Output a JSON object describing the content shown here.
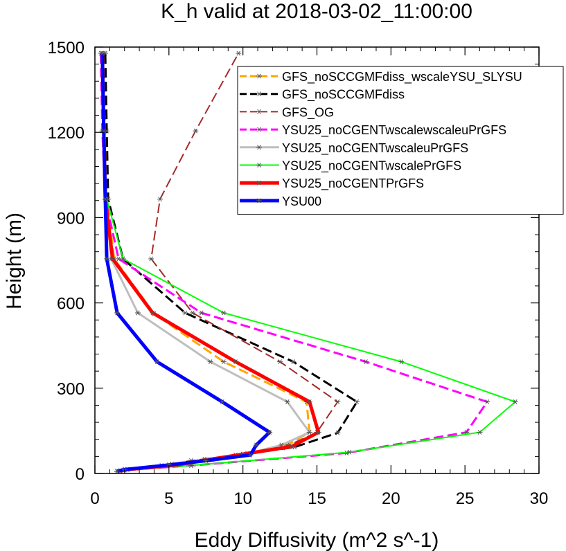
{
  "chart_data": {
    "type": "line",
    "title": "K_h valid at 2018-03-02_11:00:00",
    "xlabel": "Eddy Diffusivity (m^2 s^-1)",
    "ylabel": "Height (m)",
    "xlim": [
      0,
      30
    ],
    "ylim": [
      0,
      1500
    ],
    "xticks": [
      0,
      5,
      10,
      15,
      20,
      25,
      30
    ],
    "yticks": [
      0,
      300,
      600,
      900,
      1200,
      1500
    ],
    "grid": false,
    "legend_position": "top-right",
    "series": [
      {
        "name": "GFS_noSCCGMFdiss_wscaleYSU_SLYSU",
        "color": "#ffa500",
        "dash": "dash-long",
        "width": 3,
        "points": [
          [
            1.7,
            10
          ],
          [
            2.0,
            15
          ],
          [
            5.2,
            33
          ],
          [
            7.4,
            50
          ],
          [
            10.3,
            70
          ],
          [
            13.0,
            100
          ],
          [
            14.5,
            145
          ],
          [
            14.3,
            252
          ],
          [
            8.7,
            393
          ],
          [
            4.0,
            562
          ],
          [
            1.3,
            755
          ],
          [
            0.8,
            965
          ],
          [
            0.7,
            1205
          ],
          [
            0.6,
            1478
          ]
        ]
      },
      {
        "name": "GFS_noSCCGMFdiss",
        "color": "#000000",
        "dash": "dash-long",
        "width": 3,
        "points": [
          [
            1.5,
            8
          ],
          [
            2.0,
            14
          ],
          [
            5.0,
            30
          ],
          [
            7.5,
            47
          ],
          [
            10.0,
            67
          ],
          [
            13.5,
            93
          ],
          [
            16.4,
            143
          ],
          [
            17.7,
            252
          ],
          [
            13.4,
            393
          ],
          [
            6.1,
            565
          ],
          [
            1.9,
            755
          ],
          [
            0.9,
            965
          ],
          [
            0.8,
            1205
          ],
          [
            0.7,
            1478
          ]
        ]
      },
      {
        "name": "GFS_OG",
        "color": "#a52a2a",
        "dash": "dash-long",
        "width": 2,
        "points": [
          [
            1.5,
            8
          ],
          [
            2.0,
            12
          ],
          [
            4.5,
            28
          ],
          [
            6.5,
            45
          ],
          [
            9.5,
            65
          ],
          [
            12.7,
            90
          ],
          [
            15.0,
            145
          ],
          [
            16.4,
            252
          ],
          [
            12.5,
            393
          ],
          [
            6.6,
            565
          ],
          [
            3.8,
            755
          ],
          [
            4.4,
            965
          ],
          [
            6.8,
            1205
          ],
          [
            9.7,
            1478
          ]
        ]
      },
      {
        "name": "YSU25_noCGENTwscalewscaleuPrGFS",
        "color": "#ff00ff",
        "dash": "dash-long",
        "width": 3,
        "points": [
          [
            1.5,
            8
          ],
          [
            2.0,
            12
          ],
          [
            6.5,
            28
          ],
          [
            17.0,
            72
          ],
          [
            25.1,
            145
          ],
          [
            26.5,
            252
          ],
          [
            18.3,
            393
          ],
          [
            7.2,
            565
          ],
          [
            1.6,
            755
          ],
          [
            0.7,
            965
          ],
          [
            0.5,
            1205
          ],
          [
            0.4,
            1478
          ]
        ]
      },
      {
        "name": "YSU25_noCGENTwscaleuPrGFS",
        "color": "#bebebe",
        "dash": "solid",
        "width": 3,
        "points": [
          [
            1.7,
            8
          ],
          [
            2.2,
            14
          ],
          [
            5.5,
            30
          ],
          [
            7.9,
            48
          ],
          [
            10.3,
            70
          ],
          [
            12.6,
            100
          ],
          [
            14.5,
            145
          ],
          [
            13.0,
            252
          ],
          [
            7.8,
            393
          ],
          [
            2.9,
            565
          ],
          [
            1.1,
            755
          ],
          [
            0.7,
            965
          ],
          [
            0.6,
            1205
          ],
          [
            0.5,
            1478
          ]
        ]
      },
      {
        "name": "YSU25_noCGENTwscalePrGFS",
        "color": "#00ff00",
        "dash": "solid",
        "width": 2,
        "points": [
          [
            1.5,
            8
          ],
          [
            2.0,
            12
          ],
          [
            6.5,
            28
          ],
          [
            17.2,
            75
          ],
          [
            26.0,
            145
          ],
          [
            28.4,
            252
          ],
          [
            20.7,
            393
          ],
          [
            8.7,
            565
          ],
          [
            1.9,
            755
          ],
          [
            0.8,
            965
          ],
          [
            0.6,
            1205
          ],
          [
            0.5,
            1478
          ]
        ]
      },
      {
        "name": "YSU25_noCGENTPrGFS",
        "color": "#ff0000",
        "dash": "solid",
        "width": 5,
        "points": [
          [
            1.7,
            8
          ],
          [
            2.2,
            14
          ],
          [
            5.5,
            30
          ],
          [
            7.6,
            48
          ],
          [
            10.0,
            68
          ],
          [
            13.3,
            95
          ],
          [
            15.1,
            145
          ],
          [
            14.5,
            252
          ],
          [
            9.5,
            393
          ],
          [
            3.9,
            565
          ],
          [
            1.2,
            755
          ],
          [
            0.7,
            965
          ],
          [
            0.6,
            1205
          ],
          [
            0.5,
            1478
          ]
        ]
      },
      {
        "name": "YSU00",
        "color": "#0000ff",
        "dash": "solid",
        "width": 5,
        "points": [
          [
            1.5,
            8
          ],
          [
            2.0,
            14
          ],
          [
            5.0,
            30
          ],
          [
            7.5,
            45
          ],
          [
            10.5,
            65
          ],
          [
            10.9,
            100
          ],
          [
            11.8,
            145
          ],
          [
            8.6,
            252
          ],
          [
            4.2,
            393
          ],
          [
            1.5,
            565
          ],
          [
            0.8,
            755
          ],
          [
            0.7,
            965
          ],
          [
            0.6,
            1205
          ],
          [
            0.5,
            1478
          ]
        ]
      }
    ]
  }
}
